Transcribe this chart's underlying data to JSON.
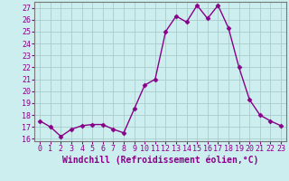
{
  "x": [
    0,
    1,
    2,
    3,
    4,
    5,
    6,
    7,
    8,
    9,
    10,
    11,
    12,
    13,
    14,
    15,
    16,
    17,
    18,
    19,
    20,
    21,
    22,
    23
  ],
  "y": [
    17.5,
    17.0,
    16.2,
    16.8,
    17.1,
    17.2,
    17.2,
    16.8,
    16.5,
    18.5,
    20.5,
    21.0,
    25.0,
    26.3,
    25.8,
    27.2,
    26.1,
    27.2,
    25.3,
    22.0,
    19.3,
    18.0,
    17.5,
    17.1
  ],
  "line_color": "#880088",
  "marker": "D",
  "marker_size": 2.5,
  "bg_color": "#cceeee",
  "grid_color": "#aacccc",
  "xlabel": "Windchill (Refroidissement éolien,°C)",
  "xlabel_fontsize": 7,
  "ylim": [
    15.8,
    27.5
  ],
  "yticks": [
    16,
    17,
    18,
    19,
    20,
    21,
    22,
    23,
    24,
    25,
    26,
    27
  ],
  "xticks": [
    0,
    1,
    2,
    3,
    4,
    5,
    6,
    7,
    8,
    9,
    10,
    11,
    12,
    13,
    14,
    15,
    16,
    17,
    18,
    19,
    20,
    21,
    22,
    23
  ],
  "tick_fontsize": 6,
  "line_width": 1.0,
  "spine_color": "#777777"
}
